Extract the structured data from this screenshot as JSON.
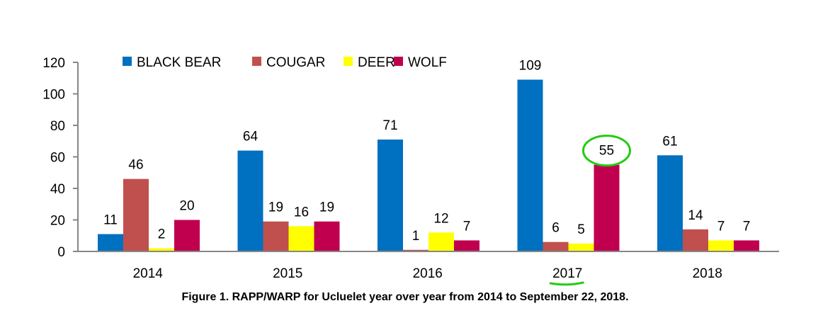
{
  "chart_data": {
    "type": "bar",
    "title": "",
    "caption": "Figure 1. RAPP/WARP for Ucluelet year over year from 2014 to September 22, 2018.",
    "categories": [
      "2014",
      "2015",
      "2016",
      "2017",
      "2018"
    ],
    "series": [
      {
        "name": "BLACK BEAR",
        "color": "#0070C0",
        "values": [
          11,
          64,
          71,
          109,
          61
        ]
      },
      {
        "name": "COUGAR",
        "color": "#C0504D",
        "values": [
          46,
          19,
          1,
          6,
          14
        ]
      },
      {
        "name": "DEER",
        "color": "#FFFF00",
        "values": [
          2,
          16,
          12,
          5,
          7
        ]
      },
      {
        "name": "WOLF",
        "color": "#C0004E",
        "values": [
          20,
          19,
          7,
          55,
          7
        ]
      }
    ],
    "ylim": [
      0,
      120
    ],
    "yticks": [
      0,
      20,
      40,
      60,
      80,
      100,
      120
    ],
    "xlabel": "",
    "ylabel": "",
    "grid": false,
    "legend": "top",
    "annotations": {
      "circled_value": {
        "series": "WOLF",
        "category": "2017"
      },
      "underlined_category": "2017",
      "color": "#22CC11"
    }
  }
}
